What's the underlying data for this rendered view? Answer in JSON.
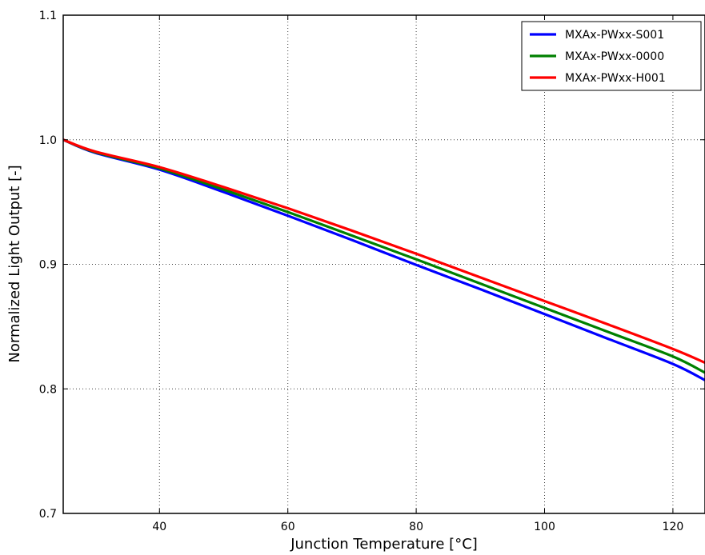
{
  "chart_data": {
    "type": "line",
    "xlabel": "Junction Temperature [°C]",
    "ylabel": "Normalized Light Output [-]",
    "xlim": [
      25,
      125
    ],
    "ylim": [
      0.7,
      1.1
    ],
    "xticks": [
      40,
      60,
      80,
      100,
      120
    ],
    "yticks": [
      0.7,
      0.8,
      0.9,
      1.0,
      1.1
    ],
    "ytick_labels": [
      "0.7",
      "0.8",
      "0.9",
      "1.0",
      "1.1"
    ],
    "grid": true,
    "legend_position": "top-right",
    "x": [
      25,
      30,
      40,
      50,
      60,
      70,
      80,
      90,
      100,
      110,
      120,
      125
    ],
    "series": [
      {
        "name": "MXAx-PWxx-S001",
        "color": "#0000ff",
        "values": [
          1.0,
          0.9895,
          0.976,
          0.958,
          0.939,
          0.9195,
          0.8995,
          0.88,
          0.86,
          0.84,
          0.82,
          0.807
        ]
      },
      {
        "name": "MXAx-PWxx-0000",
        "color": "#008000",
        "values": [
          1.0,
          0.99,
          0.977,
          0.96,
          0.942,
          0.923,
          0.904,
          0.8845,
          0.865,
          0.8455,
          0.826,
          0.813
        ]
      },
      {
        "name": "MXAx-PWxx-H001",
        "color": "#ff0000",
        "values": [
          1.0,
          0.9905,
          0.978,
          0.962,
          0.945,
          0.927,
          0.9085,
          0.8895,
          0.8705,
          0.8515,
          0.832,
          0.821
        ]
      }
    ]
  }
}
